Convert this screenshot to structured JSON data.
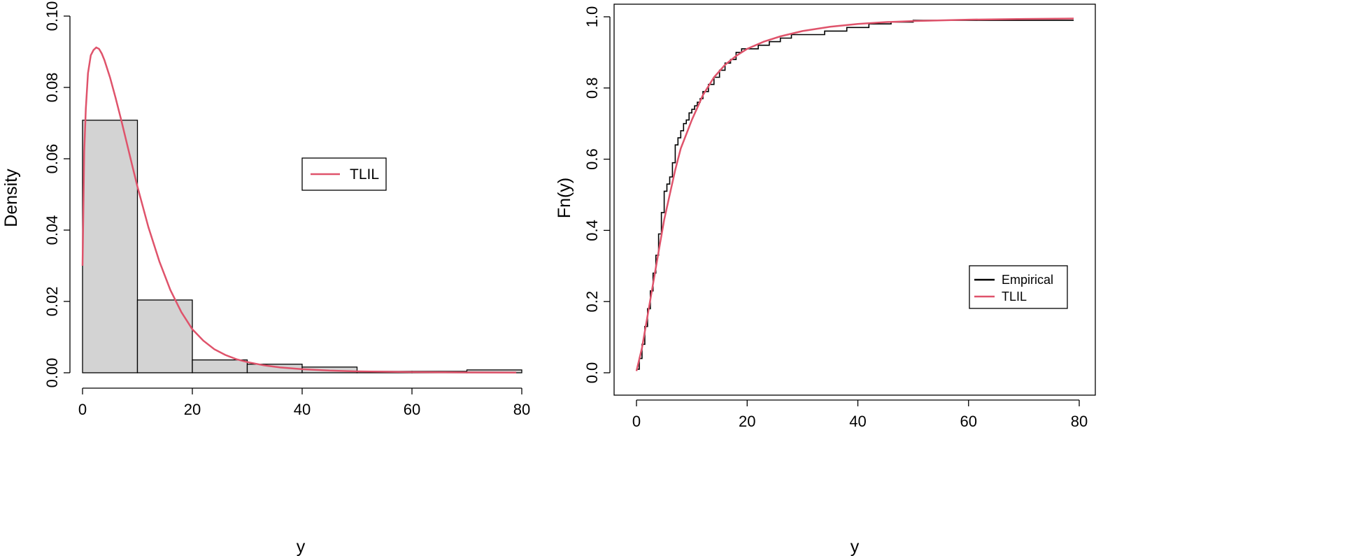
{
  "chart_data": [
    {
      "type": "bar",
      "subtype": "histogram",
      "title": "",
      "xlabel": "y",
      "ylabel": "Density",
      "xlim": [
        0,
        80
      ],
      "ylim": [
        0,
        0.1
      ],
      "xticks": [
        0,
        20,
        40,
        60,
        80
      ],
      "xtick_labels": [
        "0",
        "20",
        "40",
        "60",
        "80"
      ],
      "yticks": [
        0,
        0.02,
        0.04,
        0.06,
        0.08,
        0.1
      ],
      "ytick_labels": [
        "0.00",
        "0.02",
        "0.04",
        "0.06",
        "0.08",
        "0.10"
      ],
      "grid": false,
      "bins": [
        {
          "x0": 0,
          "x1": 10,
          "value": 0.0708
        },
        {
          "x0": 10,
          "x1": 20,
          "value": 0.0204
        },
        {
          "x0": 20,
          "x1": 30,
          "value": 0.0036
        },
        {
          "x0": 30,
          "x1": 40,
          "value": 0.0024
        },
        {
          "x0": 40,
          "x1": 50,
          "value": 0.0016
        },
        {
          "x0": 50,
          "x1": 60,
          "value": 0.0004
        },
        {
          "x0": 60,
          "x1": 70,
          "value": 0.0004
        },
        {
          "x0": 70,
          "x1": 80,
          "value": 0.0008
        }
      ],
      "bar_color": "#d3d3d3",
      "series": [
        {
          "name": "TLIL",
          "type": "line",
          "color": "#df536b",
          "x": [
            0,
            0.3,
            0.6,
            1,
            1.5,
            2,
            2.5,
            3,
            3.5,
            4,
            5,
            6,
            7,
            8,
            9,
            10,
            12,
            14,
            16,
            18,
            20,
            22,
            24,
            26,
            28,
            30,
            33,
            36,
            40,
            45,
            50,
            55,
            60,
            65,
            70,
            75,
            79
          ],
          "y": [
            0.03,
            0.062,
            0.074,
            0.084,
            0.089,
            0.0905,
            0.0912,
            0.0908,
            0.0895,
            0.0876,
            0.0828,
            0.0772,
            0.0712,
            0.0648,
            0.0584,
            0.0522,
            0.0408,
            0.0312,
            0.0232,
            0.017,
            0.0122,
            0.009,
            0.0066,
            0.005,
            0.0038,
            0.003,
            0.0021,
            0.0015,
            0.001,
            0.0006,
            0.0004,
            0.0003,
            0.0002,
            0.00015,
            0.0001,
            7e-05,
            5e-05
          ]
        }
      ],
      "legend": {
        "position": "center-right",
        "entries": [
          "TLIL"
        ]
      }
    },
    {
      "type": "line",
      "subtype": "ecdf",
      "title": "",
      "xlabel": "y",
      "ylabel": "Fn(y)",
      "xlim": [
        0,
        80
      ],
      "ylim": [
        0,
        1
      ],
      "xticks": [
        0,
        20,
        40,
        60,
        80
      ],
      "xtick_labels": [
        "0",
        "20",
        "40",
        "60",
        "80"
      ],
      "yticks": [
        0,
        0.2,
        0.4,
        0.6,
        0.8,
        1.0
      ],
      "ytick_labels": [
        "0.0",
        "0.2",
        "0.4",
        "0.6",
        "0.8",
        "1.0"
      ],
      "grid": false,
      "series": [
        {
          "name": "Empirical",
          "type": "step",
          "color": "#000000",
          "x": [
            0,
            0.5,
            1,
            1.5,
            2,
            2.5,
            3,
            3.5,
            4,
            4.5,
            5,
            5.5,
            6,
            6.5,
            7,
            7.5,
            8,
            8.5,
            9,
            9.5,
            10,
            10.5,
            11,
            11.5,
            12,
            13,
            14,
            15,
            16,
            17,
            18,
            19,
            20,
            22,
            24,
            26,
            28,
            30,
            34,
            38,
            42,
            46,
            50,
            60,
            68,
            79
          ],
          "y": [
            0.01,
            0.04,
            0.08,
            0.13,
            0.18,
            0.23,
            0.28,
            0.33,
            0.39,
            0.45,
            0.51,
            0.53,
            0.55,
            0.59,
            0.64,
            0.66,
            0.68,
            0.7,
            0.71,
            0.73,
            0.74,
            0.75,
            0.76,
            0.77,
            0.79,
            0.81,
            0.83,
            0.85,
            0.87,
            0.88,
            0.9,
            0.91,
            0.91,
            0.92,
            0.93,
            0.94,
            0.95,
            0.95,
            0.96,
            0.97,
            0.98,
            0.985,
            0.99,
            0.99,
            0.99,
            0.99
          ]
        },
        {
          "name": "TLIL",
          "type": "line",
          "color": "#df536b",
          "x": [
            0,
            1,
            2,
            3,
            4,
            5,
            6,
            7,
            8,
            9,
            10,
            12,
            14,
            16,
            18,
            20,
            23,
            26,
            30,
            35,
            40,
            45,
            50,
            60,
            70,
            79
          ],
          "y": [
            0.005,
            0.07,
            0.16,
            0.25,
            0.34,
            0.43,
            0.5,
            0.57,
            0.63,
            0.67,
            0.71,
            0.78,
            0.83,
            0.865,
            0.89,
            0.91,
            0.93,
            0.945,
            0.96,
            0.972,
            0.98,
            0.985,
            0.988,
            0.992,
            0.994,
            0.995
          ]
        }
      ],
      "legend": {
        "position": "bottom-right",
        "entries": [
          "Empirical",
          "TLIL"
        ]
      }
    }
  ]
}
